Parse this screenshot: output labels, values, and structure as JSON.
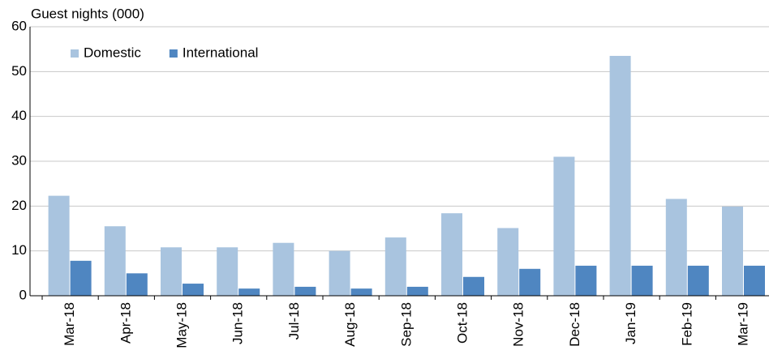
{
  "chart_data": {
    "type": "bar",
    "title": "Guest nights (000)",
    "categories": [
      "Mar-18",
      "Apr-18",
      "May-18",
      "Jun-18",
      "Jul-18",
      "Aug-18",
      "Sep-18",
      "Oct-18",
      "Nov-18",
      "Dec-18",
      "Jan-19",
      "Feb-19",
      "Mar-19"
    ],
    "series": [
      {
        "name": "Domestic",
        "color": "#a9c4df",
        "values": [
          22.3,
          15.5,
          10.8,
          10.8,
          11.8,
          10,
          13,
          18.4,
          15.1,
          31,
          53.5,
          21.6,
          19.9
        ]
      },
      {
        "name": "International",
        "color": "#4f86c1",
        "values": [
          7.8,
          5,
          2.7,
          1.6,
          2,
          1.6,
          2,
          4.2,
          6,
          6.7,
          6.7,
          6.7,
          6.7
        ]
      }
    ],
    "ylim": [
      0,
      60
    ],
    "yticks": [
      0,
      10,
      20,
      30,
      40,
      50,
      60
    ],
    "grid": true,
    "legend": "upper-left"
  }
}
